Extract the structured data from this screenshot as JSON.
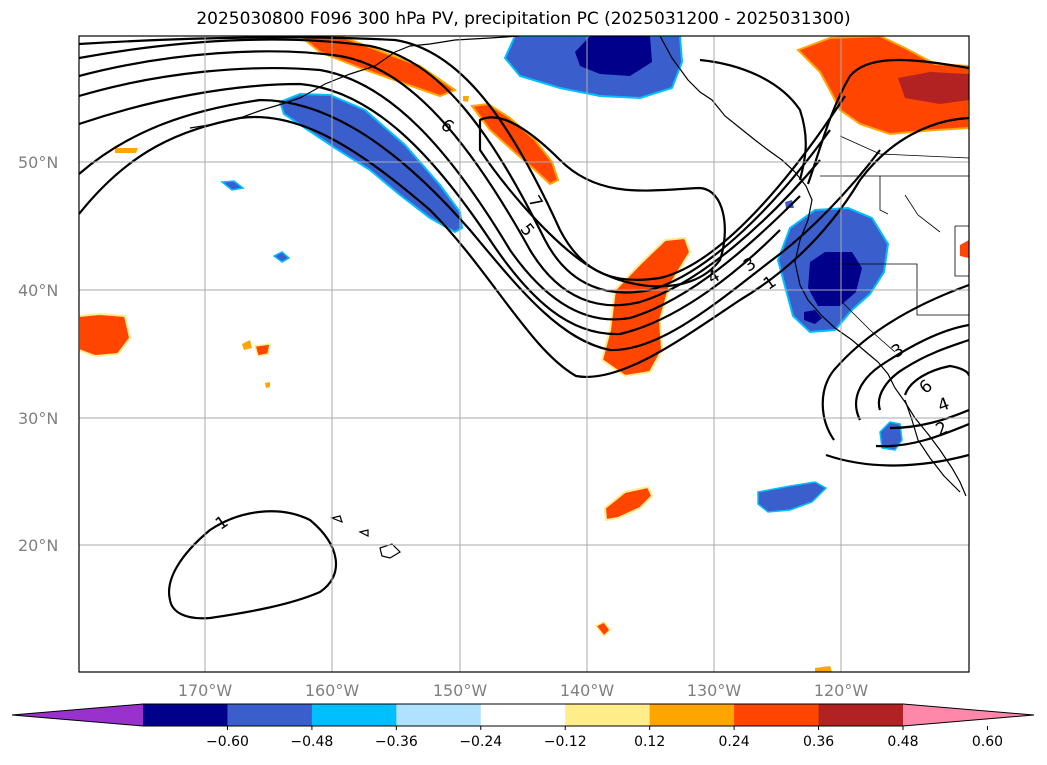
{
  "title": "2025030800 F096 300 hPa PV, precipitation PC (2025031200 - 2025031300)",
  "lat_labels": [
    "50°N",
    "40°N",
    "30°N",
    "20°N"
  ],
  "lon_labels": [
    "170°W",
    "160°W",
    "150°W",
    "140°W",
    "130°W",
    "120°W"
  ],
  "contour_labels": [
    "6",
    "7",
    "5",
    "4",
    "3",
    "1",
    "1",
    "3",
    "6",
    "4",
    "2"
  ],
  "colorbar": {
    "ticks": [
      "−0.60",
      "−0.48",
      "−0.36",
      "−0.24",
      "−0.12",
      "0.12",
      "0.24",
      "0.36",
      "0.48",
      "0.60"
    ],
    "colors": [
      "#9932cc",
      "#00008b",
      "#3a5fcd",
      "#00bfff",
      "#b0e2ff",
      "#ffffff",
      "#ffec8b",
      "#ffa500",
      "#ff4500",
      "#b22222",
      "#ff88aa"
    ]
  },
  "colors": {
    "neg_strong": "#00008b",
    "neg_mid": "#3a5fcd",
    "neg_light": "#00bfff",
    "pos_light": "#ffa500",
    "pos_mid": "#ff4500",
    "pos_strong": "#b22222",
    "pos_edge": "#ffec8b"
  }
}
